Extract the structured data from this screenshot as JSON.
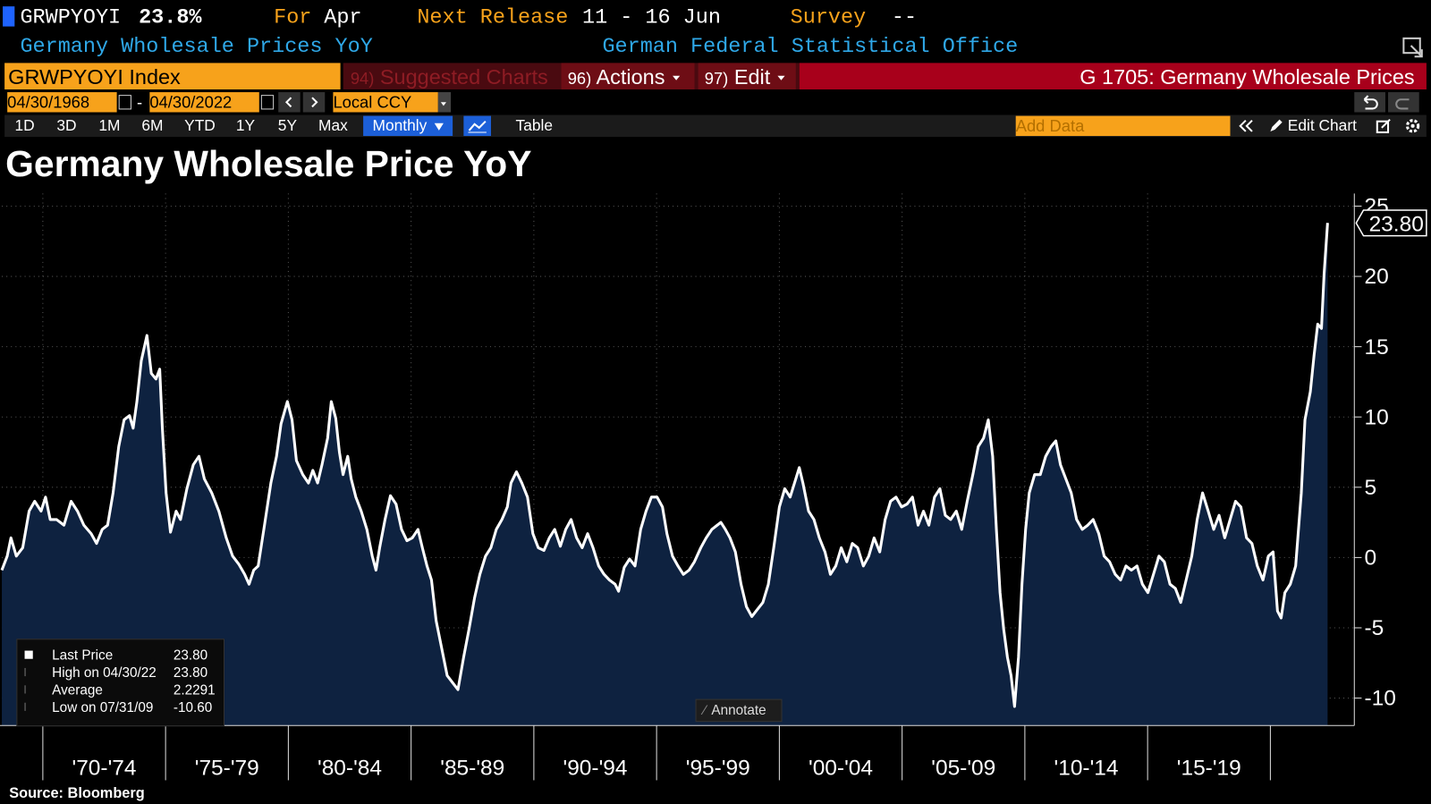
{
  "header": {
    "ticker": "GRWPYOYI",
    "last": "23.8%",
    "for_label": "For",
    "for_value": "Apr",
    "release_label": "Next Release",
    "release_value": "11 - 16 Jun",
    "survey_label": "Survey",
    "survey_value": "--",
    "name": "Germany Wholesale Prices YoY",
    "source_org": "German Federal Statistical Office"
  },
  "toolbar": {
    "security": "GRWPYOYI Index",
    "suggested_num": "94)",
    "suggested": "Suggested Charts",
    "actions_num": "96)",
    "actions": "Actions",
    "edit_num": "97)",
    "edit": "Edit",
    "function": "G 1705: Germany Wholesale Prices"
  },
  "range": {
    "start": "04/30/1968",
    "separator": "-",
    "end": "04/30/2022",
    "currency": "Local CCY"
  },
  "controls": {
    "periods": [
      "1D",
      "3D",
      "1M",
      "6M",
      "YTD",
      "1Y",
      "5Y",
      "Max"
    ],
    "frequency": "Monthly",
    "table": "Table",
    "add_data": "Add Data",
    "edit_chart": "Edit Chart",
    "annotate": "Annotate"
  },
  "stats": [
    {
      "label": "Last Price",
      "value": "23.80"
    },
    {
      "label": "High on 04/30/22",
      "value": "23.80"
    },
    {
      "label": "Average",
      "value": "2.2291"
    },
    {
      "label": "Low on 07/31/09",
      "value": "-10.60"
    }
  ],
  "footer": {
    "source": "Source: Bloomberg"
  },
  "chart_data": {
    "type": "area",
    "title": "Germany Wholesale Price YoY",
    "color": "#ffffff",
    "fill": "#0e2240",
    "last_label": "23.80",
    "xlim": [
      1968.33,
      2023.42
    ],
    "xticks": [
      {
        "value": 1972.5,
        "label": "'70-'74"
      },
      {
        "value": 1977.5,
        "label": "'75-'79"
      },
      {
        "value": 1982.5,
        "label": "'80-'84"
      },
      {
        "value": 1987.5,
        "label": "'85-'89"
      },
      {
        "value": 1992.5,
        "label": "'90-'94"
      },
      {
        "value": 1997.5,
        "label": "'95-'99"
      },
      {
        "value": 2002.5,
        "label": "'00-'04"
      },
      {
        "value": 2007.5,
        "label": "'05-'09"
      },
      {
        "value": 2012.5,
        "label": "'10-'14"
      },
      {
        "value": 2017.5,
        "label": "'15-'19"
      }
    ],
    "ylim": [
      -11.95,
      25.9
    ],
    "yticks": [
      -10,
      -5,
      0,
      5,
      10,
      15,
      20,
      25
    ],
    "grid": true,
    "x": [
      1968.33,
      1968.55,
      1968.7,
      1968.92,
      1969.18,
      1969.44,
      1969.67,
      1969.93,
      1970.11,
      1970.3,
      1970.56,
      1970.86,
      1971.15,
      1971.41,
      1971.67,
      1971.97,
      1972.19,
      1972.42,
      1972.64,
      1972.86,
      1973.09,
      1973.31,
      1973.53,
      1973.68,
      1973.83,
      1974.01,
      1974.24,
      1974.42,
      1974.61,
      1974.76,
      1974.87,
      1975.02,
      1975.2,
      1975.43,
      1975.61,
      1975.87,
      1976.13,
      1976.36,
      1976.58,
      1976.88,
      1977.17,
      1977.47,
      1977.73,
      1977.99,
      1978.22,
      1978.4,
      1978.59,
      1978.77,
      1979.03,
      1979.29,
      1979.52,
      1979.7,
      1979.96,
      1980.15,
      1980.33,
      1980.59,
      1980.82,
      1981.0,
      1981.19,
      1981.37,
      1981.6,
      1981.75,
      1981.93,
      1982.08,
      1982.23,
      1982.42,
      1982.56,
      1982.75,
      1982.97,
      1983.2,
      1983.42,
      1983.57,
      1983.72,
      1983.94,
      1984.16,
      1984.39,
      1984.61,
      1984.83,
      1985.05,
      1985.28,
      1985.46,
      1985.65,
      1985.83,
      1986.02,
      1986.24,
      1986.47,
      1986.69,
      1986.91,
      1987.14,
      1987.36,
      1987.58,
      1987.8,
      1988.03,
      1988.25,
      1988.47,
      1988.7,
      1988.92,
      1989.07,
      1989.29,
      1989.51,
      1989.74,
      1989.96,
      1990.18,
      1990.41,
      1990.63,
      1990.85,
      1991.08,
      1991.3,
      1991.52,
      1991.74,
      1991.97,
      1992.19,
      1992.41,
      1992.64,
      1992.86,
      1993.08,
      1993.31,
      1993.45,
      1993.68,
      1993.9,
      1994.12,
      1994.35,
      1994.57,
      1994.79,
      1995.02,
      1995.24,
      1995.42,
      1995.65,
      1995.87,
      1996.09,
      1996.32,
      1996.54,
      1996.8,
      1997.02,
      1997.25,
      1997.47,
      1997.62,
      1997.8,
      1997.99,
      1998.21,
      1998.44,
      1998.66,
      1998.88,
      1999.1,
      1999.33,
      1999.55,
      1999.77,
      2000.0,
      2000.22,
      2000.44,
      2000.67,
      2000.81,
      2000.96,
      2001.19,
      2001.41,
      2001.63,
      2001.86,
      2002.08,
      2002.3,
      2002.52,
      2002.75,
      2002.97,
      2003.19,
      2003.42,
      2003.64,
      2003.86,
      2004.09,
      2004.31,
      2004.53,
      2004.75,
      2004.98,
      2005.2,
      2005.42,
      2005.65,
      2005.87,
      2006.09,
      2006.32,
      2006.54,
      2006.76,
      2006.98,
      2007.21,
      2007.43,
      2007.65,
      2007.88,
      2008.1,
      2008.32,
      2008.51,
      2008.69,
      2008.84,
      2008.99,
      2009.14,
      2009.29,
      2009.44,
      2009.58,
      2009.74,
      2009.88,
      2010.03,
      2010.18,
      2010.4,
      2010.63,
      2010.85,
      2011.07,
      2011.26,
      2011.45,
      2011.67,
      2011.89,
      2012.11,
      2012.34,
      2012.56,
      2012.78,
      2013.01,
      2013.23,
      2013.45,
      2013.68,
      2013.9,
      2014.12,
      2014.34,
      2014.57,
      2014.79,
      2015.01,
      2015.24,
      2015.46,
      2015.68,
      2015.91,
      2016.13,
      2016.35,
      2016.57,
      2016.8,
      2017.02,
      2017.24,
      2017.47,
      2017.69,
      2017.91,
      2018.14,
      2018.36,
      2018.58,
      2018.8,
      2019.03,
      2019.25,
      2019.47,
      2019.7,
      2019.92,
      2020.11,
      2020.29,
      2020.44,
      2020.59,
      2020.81,
      2021.03,
      2021.26,
      2021.41,
      2021.63,
      2021.78,
      2021.93,
      2022.08,
      2022.19,
      2022.33
    ],
    "values": [
      -0.9,
      0.1,
      1.4,
      0.1,
      0.7,
      3.3,
      4.0,
      3.3,
      4.3,
      2.7,
      2.7,
      2.3,
      4.0,
      3.3,
      2.3,
      1.7,
      1.0,
      2.0,
      2.3,
      4.6,
      7.9,
      9.8,
      10.1,
      9.2,
      11.1,
      14.0,
      15.8,
      13.1,
      12.7,
      13.4,
      9.2,
      4.6,
      1.8,
      3.3,
      2.7,
      4.9,
      6.6,
      7.2,
      5.6,
      4.6,
      3.3,
      1.4,
      0.1,
      -0.5,
      -1.2,
      -1.9,
      -0.9,
      -0.6,
      2.3,
      5.3,
      7.2,
      9.5,
      11.1,
      9.8,
      6.9,
      5.9,
      5.3,
      6.2,
      5.3,
      6.6,
      8.5,
      11.1,
      9.9,
      7.5,
      5.9,
      7.2,
      5.6,
      4.3,
      3.3,
      2.0,
      0.1,
      -0.9,
      0.7,
      2.7,
      4.4,
      3.8,
      2.0,
      1.2,
      1.4,
      2.0,
      0.7,
      -0.6,
      -1.6,
      -4.5,
      -6.4,
      -8.4,
      -8.9,
      -9.4,
      -7.1,
      -5.1,
      -2.9,
      -1.2,
      0.1,
      0.7,
      2.0,
      2.7,
      3.6,
      5.3,
      6.1,
      5.3,
      4.3,
      1.7,
      0.7,
      0.5,
      1.4,
      2.0,
      0.8,
      2.0,
      2.7,
      1.4,
      0.7,
      1.7,
      0.7,
      -0.6,
      -1.2,
      -1.6,
      -1.9,
      -2.4,
      -0.7,
      -0.1,
      -0.6,
      2.0,
      3.3,
      4.3,
      4.3,
      3.6,
      1.7,
      0.1,
      -0.6,
      -1.2,
      -0.9,
      -0.3,
      0.7,
      1.4,
      2.0,
      2.3,
      2.5,
      2.0,
      1.4,
      0.4,
      -1.9,
      -3.5,
      -4.2,
      -3.7,
      -3.2,
      -1.9,
      0.7,
      3.6,
      4.9,
      4.3,
      5.6,
      6.4,
      5.3,
      3.3,
      2.7,
      1.4,
      0.4,
      -1.2,
      -0.6,
      0.7,
      -0.3,
      1.0,
      0.7,
      -0.6,
      0.1,
      1.4,
      0.4,
      2.7,
      4.0,
      4.3,
      3.6,
      3.8,
      4.3,
      2.3,
      3.3,
      2.3,
      4.3,
      4.9,
      3.0,
      2.7,
      3.3,
      2.0,
      4.0,
      5.9,
      7.9,
      8.5,
      9.8,
      7.2,
      2.0,
      -2.5,
      -5.1,
      -7.1,
      -8.4,
      -10.6,
      -7.1,
      -1.9,
      2.0,
      4.6,
      5.9,
      5.9,
      7.2,
      7.9,
      8.3,
      6.6,
      5.6,
      4.6,
      2.7,
      2.0,
      2.3,
      2.7,
      1.7,
      0.1,
      -0.3,
      -1.2,
      -1.6,
      -0.6,
      -0.9,
      -0.6,
      -1.9,
      -2.5,
      -1.2,
      0.1,
      -0.3,
      -1.9,
      -2.2,
      -3.2,
      -1.6,
      0.1,
      2.7,
      4.6,
      3.3,
      2.0,
      3.0,
      1.4,
      2.7,
      4.0,
      3.6,
      1.4,
      1.0,
      -0.6,
      -1.6,
      0.1,
      0.4,
      -3.8,
      -4.3,
      -2.5,
      -1.9,
      -0.6,
      4.6,
      9.8,
      11.8,
      14.4,
      16.6,
      16.3,
      20.2,
      23.8
    ]
  }
}
